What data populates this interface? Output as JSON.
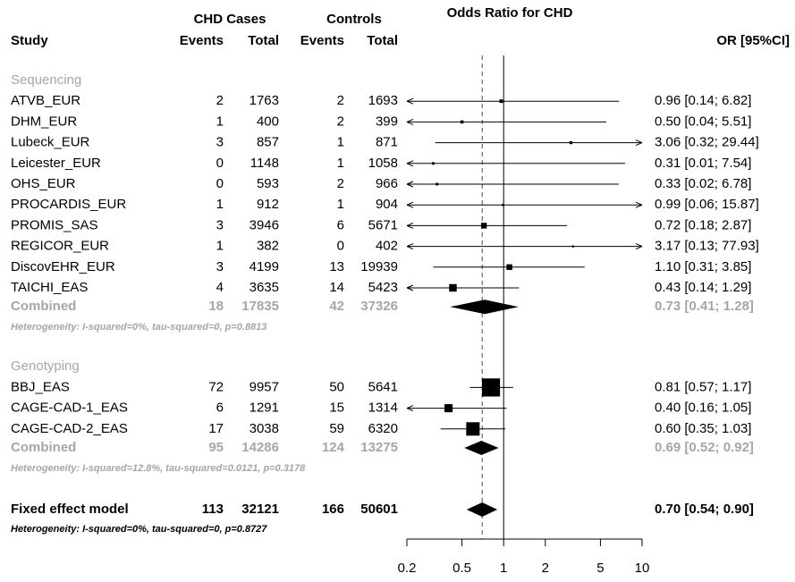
{
  "chart_data": {
    "type": "forest",
    "title": "Odds Ratio for CHD",
    "columns": {
      "study": "Study",
      "cases": "CHD Cases",
      "controls": "Controls",
      "events": "Events",
      "total": "Total",
      "or": "OR [95%CI]"
    },
    "log_scale": true,
    "xlim": [
      0.2,
      10
    ],
    "xticks": [
      0.2,
      0.5,
      1,
      2,
      5,
      10
    ],
    "null_value": 1,
    "color": "#000000",
    "combined_color": "#a6a6a6",
    "groups": [
      {
        "name": "Sequencing",
        "studies": [
          {
            "study": "ATVB_EUR",
            "cases_events": 2,
            "cases_total": 1763,
            "controls_events": 2,
            "controls_total": 1693,
            "or": 0.96,
            "lo": 0.14,
            "hi": 6.82,
            "weight": 1.5,
            "label": "0.96  [0.14;  6.82]"
          },
          {
            "study": "DHM_EUR",
            "cases_events": 1,
            "cases_total": 400,
            "controls_events": 2,
            "controls_total": 399,
            "or": 0.5,
            "lo": 0.04,
            "hi": 5.51,
            "weight": 1.2,
            "label": "0.50  [0.04;  5.51]"
          },
          {
            "study": "Lubeck_EUR",
            "cases_events": 3,
            "cases_total": 857,
            "controls_events": 1,
            "controls_total": 871,
            "or": 3.06,
            "lo": 0.32,
            "hi": 29.44,
            "weight": 1,
            "label": "3.06  [0.32; 29.44]"
          },
          {
            "study": "Leicester_EUR",
            "cases_events": 0,
            "cases_total": 1148,
            "controls_events": 1,
            "controls_total": 1058,
            "or": 0.31,
            "lo": 0.01,
            "hi": 7.54,
            "weight": 0.8,
            "label": "0.31  [0.01;  7.54]"
          },
          {
            "study": "OHS_EUR",
            "cases_events": 0,
            "cases_total": 593,
            "controls_events": 2,
            "controls_total": 966,
            "or": 0.33,
            "lo": 0.02,
            "hi": 6.78,
            "weight": 0.8,
            "label": "0.33  [0.02;  6.78]"
          },
          {
            "study": "PROCARDIS_EUR",
            "cases_events": 1,
            "cases_total": 912,
            "controls_events": 1,
            "controls_total": 904,
            "or": 0.99,
            "lo": 0.06,
            "hi": 15.87,
            "weight": 0.6,
            "label": "0.99  [0.06; 15.87]"
          },
          {
            "study": "PROMIS_SAS",
            "cases_events": 3,
            "cases_total": 3946,
            "controls_events": 6,
            "controls_total": 5671,
            "or": 0.72,
            "lo": 0.18,
            "hi": 2.87,
            "weight": 4,
            "label": "0.72  [0.18;  2.87]"
          },
          {
            "study": "REGICOR_EUR",
            "cases_events": 1,
            "cases_total": 382,
            "controls_events": 0,
            "controls_total": 402,
            "or": 3.17,
            "lo": 0.13,
            "hi": 77.93,
            "weight": 0.5,
            "label": "3.17  [0.13; 77.93]"
          },
          {
            "study": "DiscovEHR_EUR",
            "cases_events": 3,
            "cases_total": 4199,
            "controls_events": 13,
            "controls_total": 19939,
            "or": 1.1,
            "lo": 0.31,
            "hi": 3.85,
            "weight": 4,
            "label": "1.10  [0.31;  3.85]"
          },
          {
            "study": "TAICHI_EAS",
            "cases_events": 4,
            "cases_total": 3635,
            "controls_events": 14,
            "controls_total": 5423,
            "or": 0.43,
            "lo": 0.14,
            "hi": 1.29,
            "weight": 7,
            "label": "0.43  [0.14;  1.29]"
          }
        ],
        "combined": {
          "name": "Combined",
          "cases_events": 18,
          "cases_total": 17835,
          "controls_events": 42,
          "controls_total": 37326,
          "or": 0.73,
          "lo": 0.41,
          "hi": 1.28,
          "label": "0.73  [0.41;  1.28]"
        },
        "heterogeneity": "Heterogeneity: I-squared=0%, tau-squared=0, p=0.8813"
      },
      {
        "name": "Genotyping",
        "studies": [
          {
            "study": "BBJ_EAS",
            "cases_events": 72,
            "cases_total": 9957,
            "controls_events": 50,
            "controls_total": 5641,
            "or": 0.81,
            "lo": 0.57,
            "hi": 1.17,
            "weight": 40,
            "label": "0.81  [0.57;  1.17]"
          },
          {
            "study": "CAGE-CAD-1_EAS",
            "cases_events": 6,
            "cases_total": 1291,
            "controls_events": 15,
            "controls_total": 1314,
            "or": 0.4,
            "lo": 0.16,
            "hi": 1.05,
            "weight": 8,
            "label": "0.40  [0.16;  1.05]"
          },
          {
            "study": "CAGE-CAD-2_EAS",
            "cases_events": 17,
            "cases_total": 3038,
            "controls_events": 59,
            "controls_total": 6320,
            "or": 0.6,
            "lo": 0.35,
            "hi": 1.03,
            "weight": 22,
            "label": "0.60  [0.35;  1.03]"
          }
        ],
        "combined": {
          "name": "Combined",
          "cases_events": 95,
          "cases_total": 14286,
          "controls_events": 124,
          "controls_total": 13275,
          "or": 0.69,
          "lo": 0.52,
          "hi": 0.92,
          "label": "0.69  [0.52;  0.92]"
        },
        "heterogeneity": "Heterogeneity: I-squared=12.8%, tau-squared=0.0121, p=0.3178"
      }
    ],
    "overall": {
      "name": "Fixed effect model",
      "cases_events": 113,
      "cases_total": 32121,
      "controls_events": 166,
      "controls_total": 50601,
      "or": 0.7,
      "lo": 0.54,
      "hi": 0.9,
      "label": "0.70  [0.54;  0.90]",
      "heterogeneity": "Heterogeneity: I-squared=0%, tau-squared=0, p=0.8727"
    }
  }
}
